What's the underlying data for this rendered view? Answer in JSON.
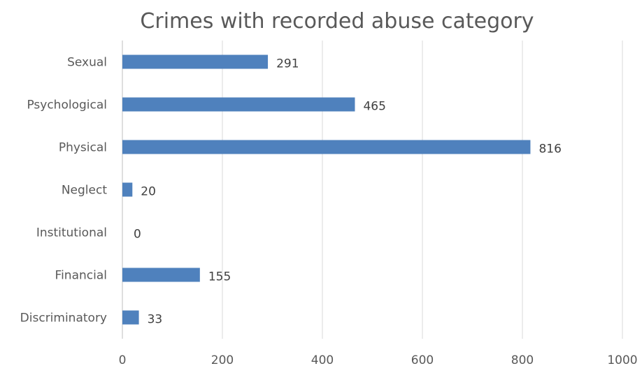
{
  "chart_data": {
    "type": "bar",
    "orientation": "horizontal",
    "title": "Crimes with recorded abuse category",
    "categories": [
      "Sexual",
      "Psychological",
      "Physical",
      "Neglect",
      "Institutional",
      "Financial",
      "Discriminatory"
    ],
    "values": [
      291,
      465,
      816,
      20,
      0,
      155,
      33
    ],
    "xlim": [
      0,
      1000
    ],
    "x_ticks": [
      "0",
      "200",
      "400",
      "600",
      "800",
      "1000"
    ],
    "grid": "vertical",
    "legend": "none",
    "data_labels": true,
    "colors": {
      "bar": "#4f81bd"
    }
  }
}
